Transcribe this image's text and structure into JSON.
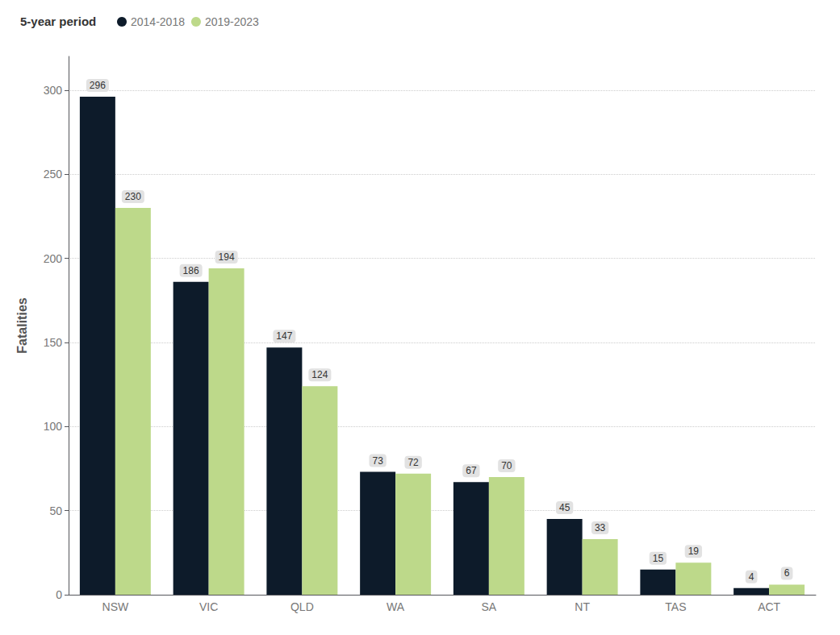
{
  "chart_data": {
    "type": "bar",
    "categories": [
      "NSW",
      "VIC",
      "QLD",
      "WA",
      "SA",
      "NT",
      "TAS",
      "ACT"
    ],
    "series": [
      {
        "name": "2014-2018",
        "color": "#0d1b2a",
        "values": [
          296,
          186,
          147,
          73,
          67,
          45,
          15,
          4
        ]
      },
      {
        "name": "2019-2023",
        "color": "#bdd98a",
        "values": [
          230,
          194,
          124,
          72,
          70,
          33,
          19,
          6
        ]
      }
    ],
    "ylabel": "Fatalities",
    "ylim": [
      0,
      320
    ],
    "yticks": [
      0,
      50,
      100,
      150,
      200,
      250,
      300
    ],
    "grid": true,
    "legend": "upper left",
    "legend_title": "5-year period",
    "data_labels": true
  }
}
